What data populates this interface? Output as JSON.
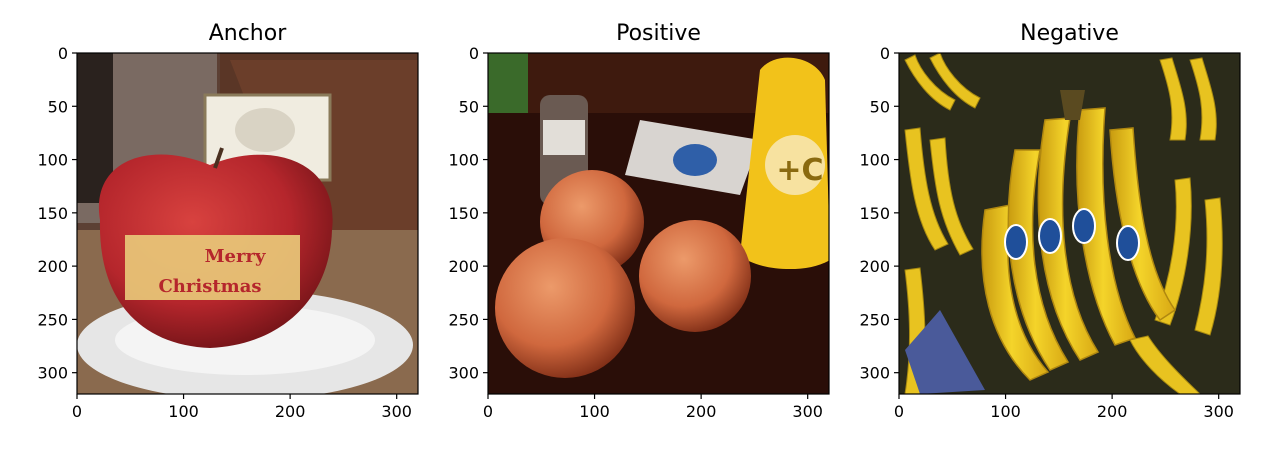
{
  "chart_data": [
    {
      "type": "image",
      "title": "Anchor",
      "subject": "red apple with Merry Christmas label on a white plate",
      "xlim": [
        0,
        320
      ],
      "ylim": [
        320,
        0
      ],
      "xticks": [
        0,
        100,
        200,
        300
      ],
      "yticks": [
        0,
        50,
        100,
        150,
        200,
        250,
        300
      ],
      "label_text": [
        "Merry",
        "Christmas"
      ],
      "palette": {
        "background": "#6b4a3a",
        "apple": "#b5262c",
        "label": "#e8c878",
        "plate": "#e6e6e6"
      }
    },
    {
      "type": "image",
      "title": "Positive",
      "subject": "three apples on a dark table with bottles",
      "xlim": [
        0,
        320
      ],
      "ylim": [
        320,
        0
      ],
      "xticks": [
        0,
        100,
        200,
        300
      ],
      "yticks": [
        0,
        50,
        100,
        150,
        200,
        250,
        300
      ],
      "bottle_text": "+C",
      "palette": {
        "background": "#2a0e08",
        "apple": "#d0683e",
        "bottle": "#f2c21a"
      }
    },
    {
      "type": "image",
      "title": "Negative",
      "subject": "bunches of yellow bananas on display",
      "xlim": [
        0,
        320
      ],
      "ylim": [
        320,
        0
      ],
      "xticks": [
        0,
        100,
        200,
        300
      ],
      "yticks": [
        0,
        50,
        100,
        150,
        200,
        250,
        300
      ],
      "palette": {
        "background": "#2b2b1a",
        "banana": "#f0cc1e",
        "sticker": "#1f4f9a"
      }
    }
  ]
}
